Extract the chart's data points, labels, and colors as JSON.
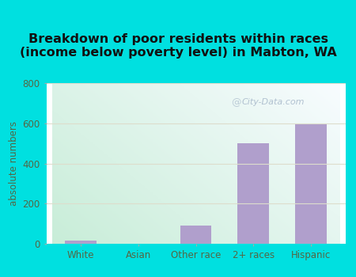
{
  "categories": [
    "White",
    "Asian",
    "Other race",
    "2+ races",
    "Hispanic"
  ],
  "values": [
    15,
    0,
    90,
    500,
    600
  ],
  "bar_color": "#b09fcc",
  "title_line1": "Breakdown of poor residents within races",
  "title_line2": "(income below poverty level) in Mabton, WA",
  "ylabel": "absolute numbers",
  "ylim": [
    0,
    800
  ],
  "yticks": [
    0,
    200,
    400,
    600,
    800
  ],
  "outer_bg": "#00e0e0",
  "grid_color": "#ddddcc",
  "tick_label_color": "#556644",
  "title_color": "#111111",
  "watermark_text": "City-Data.com",
  "watermark_color": "#aabbcc",
  "title_fontsize": 11.5,
  "axis_label_fontsize": 8.5,
  "tick_fontsize": 8.5,
  "bg_bottom_left": "#c8edd8",
  "bg_top_right": "#f0f8ff"
}
